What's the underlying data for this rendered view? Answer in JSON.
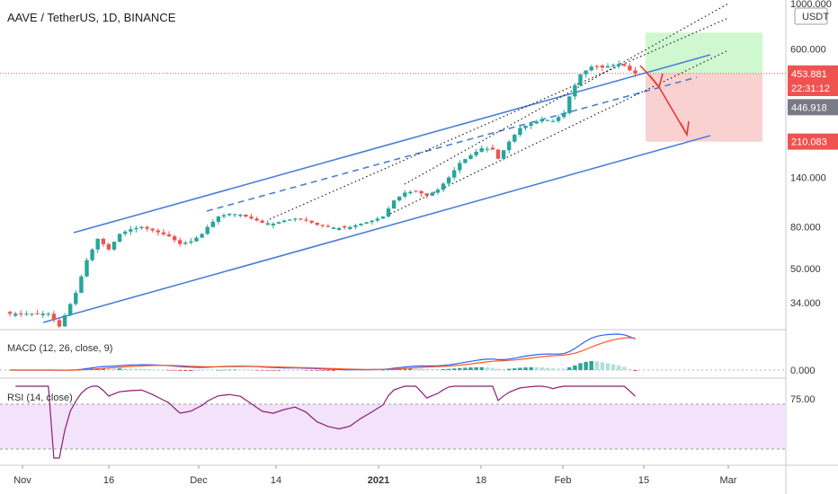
{
  "header": {
    "title": "AAVE / TetherUS, 1D, BINANCE"
  },
  "price_scale": {
    "currency": "USDT"
  },
  "chart_data": [
    {
      "type": "candlestick",
      "title": "AAVE / TetherUS, 1D, BINANCE",
      "y_scale": "log",
      "ylim": [
        25,
        1000
      ],
      "y_ticks": [
        "1000.000",
        "600.000",
        "140.000",
        "80.000",
        "50.000",
        "34.000"
      ],
      "x_ticks": [
        "Nov",
        "16",
        "Dec",
        "14",
        "2021",
        "18",
        "Feb",
        "15",
        "Mar"
      ],
      "price_tags": [
        {
          "label": "453.881",
          "color": "#ef5350",
          "value": 453.881
        },
        {
          "label": "22:31:12",
          "color": "#ef5350",
          "value": 385
        },
        {
          "label": "446.918",
          "color": "#787b86",
          "value": 310
        },
        {
          "label": "210.083",
          "color": "#ef5350",
          "value": 210.083
        }
      ],
      "close_path": [
        [
          1,
          30
        ],
        [
          4,
          30
        ],
        [
          8,
          30
        ],
        [
          10,
          26
        ],
        [
          13,
          38
        ],
        [
          15,
          55
        ],
        [
          17,
          70
        ],
        [
          19,
          62
        ],
        [
          21,
          74
        ],
        [
          23,
          78
        ],
        [
          25,
          80
        ],
        [
          27,
          77
        ],
        [
          30,
          72
        ],
        [
          32,
          66
        ],
        [
          34,
          68
        ],
        [
          36,
          74
        ],
        [
          37,
          80
        ],
        [
          39,
          90
        ],
        [
          41,
          93
        ],
        [
          43,
          92
        ],
        [
          45,
          88
        ],
        [
          47,
          84
        ],
        [
          49,
          83
        ],
        [
          51,
          86
        ],
        [
          53,
          88
        ],
        [
          55,
          86
        ],
        [
          57,
          82
        ],
        [
          59,
          80
        ],
        [
          61,
          79
        ],
        [
          63,
          80
        ],
        [
          65,
          83
        ],
        [
          67,
          86
        ],
        [
          69,
          90
        ],
        [
          71,
          108
        ],
        [
          73,
          118
        ],
        [
          75,
          120
        ],
        [
          77,
          114
        ],
        [
          79,
          122
        ],
        [
          81,
          140
        ],
        [
          83,
          165
        ],
        [
          85,
          180
        ],
        [
          87,
          195
        ],
        [
          89,
          192
        ],
        [
          90,
          173
        ],
        [
          92,
          210
        ],
        [
          94,
          245
        ],
        [
          96,
          258
        ],
        [
          98,
          270
        ],
        [
          100,
          265
        ],
        [
          102,
          290
        ],
        [
          103,
          350
        ],
        [
          105,
          450
        ],
        [
          107,
          490
        ],
        [
          109,
          485
        ],
        [
          111,
          500
        ],
        [
          112,
          505
        ],
        [
          113,
          495
        ],
        [
          114,
          470
        ],
        [
          115,
          454
        ]
      ],
      "drawings": {
        "risk_reward": {
          "entry": 454,
          "target": 720,
          "stop": 210
        }
      }
    },
    {
      "type": "line",
      "title": "MACD (12, 26, close, 9)",
      "y_ticks": [
        "0.000"
      ],
      "series": [
        {
          "name": "MACD",
          "color": "#2962ff"
        },
        {
          "name": "Signal",
          "color": "#ff5722"
        }
      ]
    },
    {
      "type": "line",
      "title": "RSI (14, close)",
      "y_ticks": [
        "75.00"
      ],
      "band": [
        30,
        70
      ],
      "series": [
        {
          "name": "RSI",
          "color": "#8e1b78"
        }
      ]
    }
  ],
  "colors": {
    "up": "#26a69a",
    "down": "#ef5350",
    "channel": "#4a7fd6",
    "arrow": "#e53935",
    "rsi_band": "#f2e3fa",
    "profit_zone": "#c8f7c8",
    "loss_zone": "#f9c9c9"
  }
}
